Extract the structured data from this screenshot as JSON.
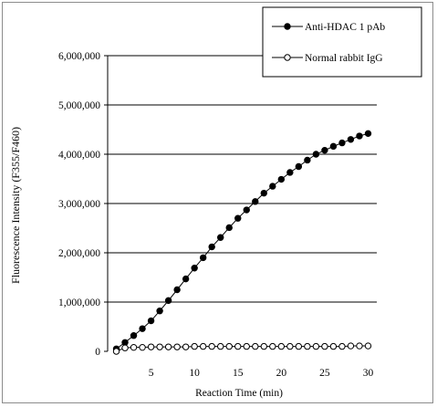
{
  "chart_data": {
    "type": "line",
    "title": "",
    "xlabel": "Reaction Time (min)",
    "ylabel": "Fluorescence Intensity (F355/F460)",
    "xlim": [
      0,
      31
    ],
    "ylim": [
      0,
      6000000
    ],
    "x_ticks": [
      0,
      5,
      10,
      15,
      20,
      25,
      30
    ],
    "x_tick_labels": [
      "0",
      "5",
      "10",
      "15",
      "20",
      "25",
      "30"
    ],
    "y_ticks": [
      0,
      1000000,
      2000000,
      3000000,
      4000000,
      5000000,
      6000000
    ],
    "y_tick_labels": [
      "0",
      "1,000,000",
      "2,000,000",
      "3,000,000",
      "4,000,000",
      "5,000,000",
      "6,000,000"
    ],
    "grid": "horizontal",
    "legend_position": "top-right",
    "x": [
      1,
      2,
      3,
      4,
      5,
      6,
      7,
      8,
      9,
      10,
      11,
      12,
      13,
      14,
      15,
      16,
      17,
      18,
      19,
      20,
      21,
      22,
      23,
      24,
      25,
      26,
      27,
      28,
      29,
      30
    ],
    "series": [
      {
        "name": "Anti-HDAC 1 pAb",
        "marker": "filled-circle",
        "values": [
          50000,
          180000,
          320000,
          460000,
          620000,
          820000,
          1030000,
          1250000,
          1470000,
          1690000,
          1900000,
          2120000,
          2310000,
          2510000,
          2700000,
          2870000,
          3040000,
          3210000,
          3350000,
          3490000,
          3630000,
          3750000,
          3880000,
          4000000,
          4080000,
          4160000,
          4230000,
          4300000,
          4370000,
          4420000
        ]
      },
      {
        "name": "Normal rabbit IgG",
        "marker": "open-circle",
        "values": [
          0,
          70000,
          80000,
          80000,
          90000,
          90000,
          90000,
          90000,
          90000,
          100000,
          100000,
          100000,
          100000,
          100000,
          100000,
          100000,
          100000,
          100000,
          100000,
          100000,
          100000,
          100000,
          100000,
          100000,
          100000,
          100000,
          100000,
          110000,
          110000,
          110000
        ]
      }
    ]
  }
}
